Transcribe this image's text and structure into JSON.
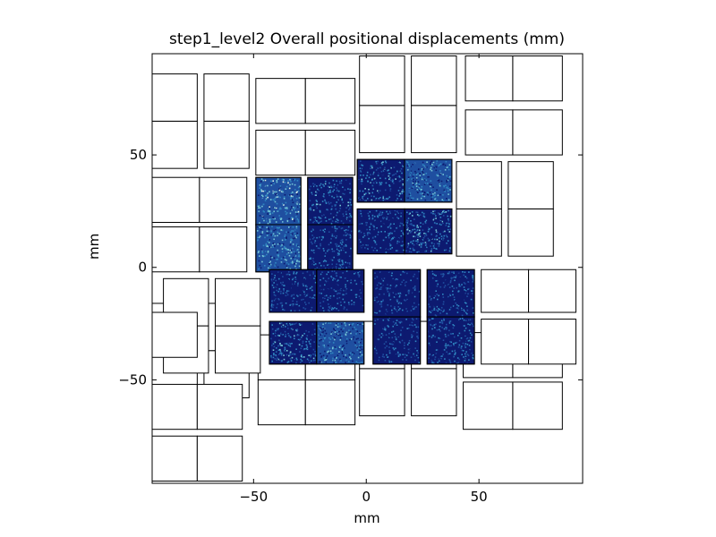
{
  "chart_data": {
    "type": "heatmap",
    "title": "step1_level2 Overall positional displacements (mm)",
    "xlabel": "mm",
    "ylabel": "mm",
    "xlim": [
      -95,
      96
    ],
    "ylim": [
      -96,
      95
    ],
    "xticks": [
      -50,
      0,
      50
    ],
    "yticks": [
      -50,
      0,
      50
    ],
    "xtick_labels": [
      "−50",
      "0",
      "50"
    ],
    "ytick_labels": [
      "−50",
      "0",
      "50"
    ],
    "grid": false,
    "colormap": [
      "#0d1a70",
      "#1f4fa0",
      "#2f86c0",
      "#74c6d6",
      "#d7f0e6"
    ],
    "cells_mm": [
      {
        "x0": -95,
        "x1": -75,
        "y0": -58,
        "y1": -37
      },
      {
        "x0": -95,
        "x1": -75,
        "y0": -37,
        "y1": -16
      },
      {
        "x0": -72,
        "x1": -52,
        "y0": -58,
        "y1": -37
      },
      {
        "x0": -72,
        "x1": -52,
        "y0": -37,
        "y1": -16
      },
      {
        "x0": -48,
        "x1": -27,
        "y0": -70,
        "y1": -50
      },
      {
        "x0": -27,
        "x1": -5,
        "y0": -70,
        "y1": -50
      },
      {
        "x0": -48,
        "x1": -27,
        "y0": -50,
        "y1": -30
      },
      {
        "x0": -27,
        "x1": -5,
        "y0": -50,
        "y1": -30
      },
      {
        "x0": -3,
        "x1": 17,
        "y0": -66,
        "y1": -45
      },
      {
        "x0": -3,
        "x1": 17,
        "y0": -45,
        "y1": -24
      },
      {
        "x0": 20,
        "x1": 40,
        "y0": -66,
        "y1": -45
      },
      {
        "x0": 20,
        "x1": 40,
        "y0": -45,
        "y1": -24
      },
      {
        "x0": 43,
        "x1": 65,
        "y0": -72,
        "y1": -51
      },
      {
        "x0": 65,
        "x1": 87,
        "y0": -72,
        "y1": -51
      },
      {
        "x0": 43,
        "x1": 65,
        "y0": -49,
        "y1": -29
      },
      {
        "x0": 65,
        "x1": 87,
        "y0": -49,
        "y1": -29
      },
      {
        "x0": -95,
        "x1": -74,
        "y0": -2,
        "y1": 18
      },
      {
        "x0": -74,
        "x1": -53,
        "y0": -2,
        "y1": 18
      },
      {
        "x0": -95,
        "x1": -74,
        "y0": 20,
        "y1": 40
      },
      {
        "x0": -74,
        "x1": -53,
        "y0": 20,
        "y1": 40
      },
      {
        "x0": -49,
        "x1": -29,
        "y0": -2,
        "y1": 19,
        "heat": 0.55
      },
      {
        "x0": -49,
        "x1": -29,
        "y0": 19,
        "y1": 40,
        "heat": 0.62
      },
      {
        "x0": -26,
        "x1": -6,
        "y0": -2,
        "y1": 19,
        "heat": 0.3
      },
      {
        "x0": -26,
        "x1": -6,
        "y0": 19,
        "y1": 40,
        "heat": 0.33
      },
      {
        "x0": -4,
        "x1": 17,
        "y0": 6,
        "y1": 26,
        "heat": 0.3
      },
      {
        "x0": 17,
        "x1": 38,
        "y0": 6,
        "y1": 26,
        "heat": 0.4
      },
      {
        "x0": -4,
        "x1": 17,
        "y0": 29,
        "y1": 48,
        "heat": 0.38
      },
      {
        "x0": 17,
        "x1": 38,
        "y0": 29,
        "y1": 48,
        "heat": 0.45
      },
      {
        "x0": 40,
        "x1": 60,
        "y0": 5,
        "y1": 26
      },
      {
        "x0": 40,
        "x1": 60,
        "y0": 26,
        "y1": 47
      },
      {
        "x0": 63,
        "x1": 83,
        "y0": 5,
        "y1": 26
      },
      {
        "x0": 63,
        "x1": 83,
        "y0": 26,
        "y1": 47
      },
      {
        "x0": -90,
        "x1": -70,
        "y0": -47,
        "y1": -26
      },
      {
        "x0": -90,
        "x1": -70,
        "y0": -26,
        "y1": -5
      },
      {
        "x0": -67,
        "x1": -47,
        "y0": -47,
        "y1": -26
      },
      {
        "x0": -67,
        "x1": -47,
        "y0": -26,
        "y1": -5
      },
      {
        "x0": -43,
        "x1": -22,
        "y0": -43,
        "y1": -24,
        "heat": 0.38
      },
      {
        "x0": -22,
        "x1": -1,
        "y0": -43,
        "y1": -24,
        "heat": 0.45
      },
      {
        "x0": -43,
        "x1": -22,
        "y0": -20,
        "y1": -1,
        "heat": 0.22
      },
      {
        "x0": -22,
        "x1": -1,
        "y0": -20,
        "y1": -1,
        "heat": 0.2
      },
      {
        "x0": 3,
        "x1": 24,
        "y0": -43,
        "y1": -22,
        "heat": 0.22
      },
      {
        "x0": 3,
        "x1": 24,
        "y0": -22,
        "y1": -1,
        "heat": 0.2
      },
      {
        "x0": 27,
        "x1": 48,
        "y0": -43,
        "y1": -22,
        "heat": 0.3
      },
      {
        "x0": 27,
        "x1": 48,
        "y0": -22,
        "y1": -1,
        "heat": 0.25
      },
      {
        "x0": 51,
        "x1": 72,
        "y0": -43,
        "y1": -23
      },
      {
        "x0": 72,
        "x1": 93,
        "y0": -43,
        "y1": -23
      },
      {
        "x0": 51,
        "x1": 72,
        "y0": -20,
        "y1": -1
      },
      {
        "x0": 72,
        "x1": 93,
        "y0": -20,
        "y1": -1
      },
      {
        "x0": -95,
        "x1": -75,
        "y0": 44,
        "y1": 65
      },
      {
        "x0": -95,
        "x1": -75,
        "y0": 65,
        "y1": 86
      },
      {
        "x0": -72,
        "x1": -52,
        "y0": 44,
        "y1": 65
      },
      {
        "x0": -72,
        "x1": -52,
        "y0": 65,
        "y1": 86
      },
      {
        "x0": -49,
        "x1": -27,
        "y0": 41,
        "y1": 61
      },
      {
        "x0": -27,
        "x1": -5,
        "y0": 41,
        "y1": 61
      },
      {
        "x0": -49,
        "x1": -27,
        "y0": 64,
        "y1": 84
      },
      {
        "x0": -27,
        "x1": -5,
        "y0": 64,
        "y1": 84
      },
      {
        "x0": -3,
        "x1": 17,
        "y0": 51,
        "y1": 72
      },
      {
        "x0": -3,
        "x1": 17,
        "y0": 72,
        "y1": 94
      },
      {
        "x0": 20,
        "x1": 40,
        "y0": 51,
        "y1": 72
      },
      {
        "x0": 20,
        "x1": 40,
        "y0": 72,
        "y1": 94
      },
      {
        "x0": 44,
        "x1": 65,
        "y0": 50,
        "y1": 70
      },
      {
        "x0": 65,
        "x1": 87,
        "y0": 50,
        "y1": 70
      },
      {
        "x0": 44,
        "x1": 65,
        "y0": 74,
        "y1": 94
      },
      {
        "x0": 65,
        "x1": 87,
        "y0": 74,
        "y1": 94
      },
      {
        "x0": -95,
        "x1": -75,
        "y0": -95,
        "y1": -75
      },
      {
        "x0": -75,
        "x1": -55,
        "y0": -95,
        "y1": -75
      },
      {
        "x0": -95,
        "x1": -75,
        "y0": -72,
        "y1": -52
      },
      {
        "x0": -75,
        "x1": -55,
        "y0": -72,
        "y1": -52
      },
      {
        "x0": -95,
        "x1": -75,
        "y0": -40,
        "y1": -20
      }
    ]
  }
}
